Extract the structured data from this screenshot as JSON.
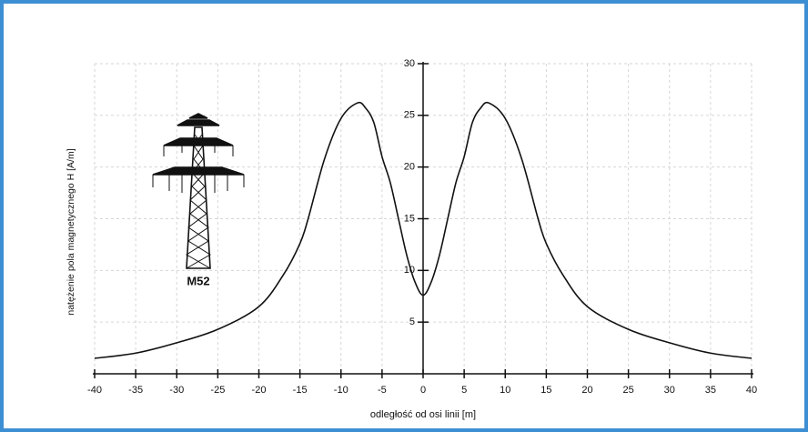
{
  "chart_data": {
    "type": "line",
    "x_label": "odległość od osi linii [m]",
    "y_label": "natężenie pola magnetycznego H [A/m]",
    "annotation": "M52",
    "x": [
      -40,
      -35,
      -30,
      -25,
      -20,
      -17,
      -15,
      -14,
      -12,
      -10,
      -8,
      -7,
      -6,
      -5,
      -4,
      -3,
      -2,
      -1,
      0,
      1,
      2,
      3,
      4,
      5,
      6,
      7,
      8,
      10,
      12,
      14,
      15,
      17,
      20,
      25,
      30,
      35,
      40
    ],
    "values": [
      1.5,
      2.0,
      3.0,
      4.3,
      6.5,
      9.6,
      12.6,
      15.0,
      20.8,
      24.7,
      26.2,
      25.7,
      24.3,
      21.0,
      18.5,
      15.0,
      11.5,
      8.9,
      7.6,
      8.9,
      11.5,
      15.0,
      18.5,
      21.0,
      24.3,
      25.7,
      26.2,
      24.7,
      20.8,
      15.0,
      12.6,
      9.6,
      6.5,
      4.3,
      3.0,
      2.0,
      1.5
    ],
    "color": "#111111",
    "xlim": [
      -40,
      40
    ],
    "xticks": [
      -40,
      -35,
      -30,
      -25,
      -20,
      -15,
      -10,
      -5,
      0,
      5,
      10,
      15,
      20,
      25,
      30,
      35,
      40
    ],
    "ylim": [
      0,
      30
    ],
    "yticks": [
      5,
      10,
      15,
      20,
      25,
      30
    ],
    "grid": true
  }
}
